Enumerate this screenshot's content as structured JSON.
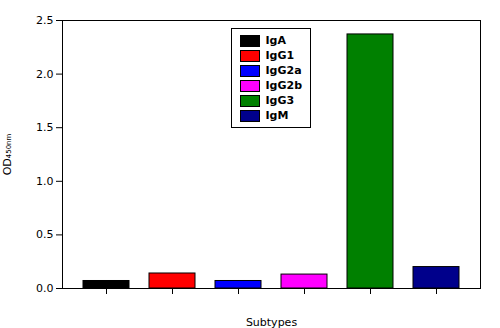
{
  "chart_data": {
    "type": "bar",
    "categories": [
      "IgA",
      "IgG1",
      "IgG2a",
      "IgG2b",
      "IgG3",
      "IgM"
    ],
    "values": [
      0.07,
      0.14,
      0.07,
      0.13,
      2.37,
      0.2
    ],
    "colors": [
      "#000000",
      "#ff0000",
      "#0000ff",
      "#ff00ff",
      "#008000",
      "#00008b"
    ],
    "xlabel": "Subtypes",
    "ylabel": "OD₄₅₀ₙₘ",
    "ylim": [
      0,
      2.5
    ],
    "yticks": [
      {
        "value": 0.0,
        "label": "0.0"
      },
      0.5,
      {
        "value": 1.0,
        "label": "1.0"
      },
      1.5,
      {
        "value": 2.0,
        "label": "2.0"
      },
      2.5
    ],
    "tick_labels": "y",
    "legend": "top",
    "grid": false
  }
}
